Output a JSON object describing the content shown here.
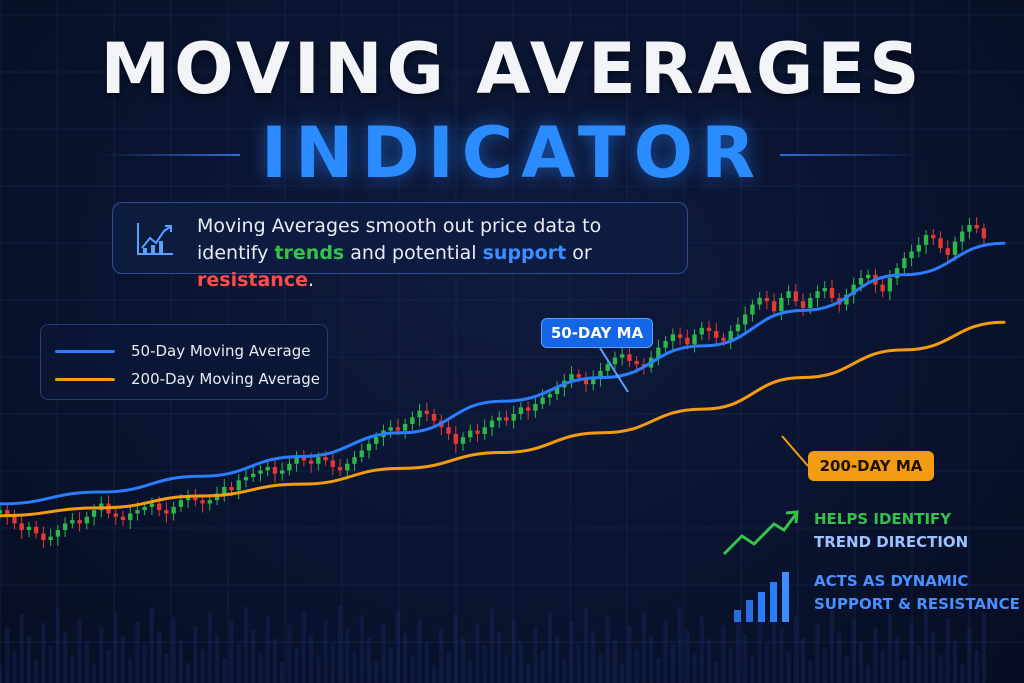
{
  "title": {
    "line1": "MOVING AVERAGES",
    "line2": "INDICATOR"
  },
  "description": {
    "part1": "Moving Averages smooth out price data to",
    "part2": "identify ",
    "trends": "trends",
    "part3": " and potential ",
    "support": "support",
    "part4": " or ",
    "resistance": "resistance",
    "part5": "."
  },
  "legend": [
    {
      "label": "50-Day Moving Average",
      "color": "#2a7dff"
    },
    {
      "label": "200-Day Moving Average",
      "color": "#f39c12"
    }
  ],
  "callouts": {
    "ma50": "50-DAY MA",
    "ma200": "200-DAY MA"
  },
  "notes": [
    {
      "line1": "HELPS IDENTIFY",
      "line2": "TREND DIRECTION",
      "icon": "trend-arrow-icon",
      "color1": "#35c24a",
      "color2": "#9ec2ff"
    },
    {
      "line1": "ACTS AS DYNAMIC",
      "line2": "SUPPORT & RESISTANCE",
      "icon": "bar-chart-icon",
      "color1": "#4a90ff",
      "color2": "#4a90ff"
    }
  ],
  "colors": {
    "background": "#0a1430",
    "up": "#2fb84a",
    "down": "#e53935",
    "ma50": "#2a7dff",
    "ma200": "#f39c12"
  },
  "chart_data": {
    "type": "line",
    "grid": true,
    "ylim": [
      0,
      100
    ],
    "xlim": [
      0,
      100
    ],
    "series": [
      {
        "name": "50-Day Moving Average",
        "color": "#2a7dff",
        "x": [
          0,
          10,
          20,
          30,
          40,
          50,
          60,
          70,
          80,
          90,
          100
        ],
        "y": [
          18,
          21,
          25,
          30,
          36,
          44,
          50,
          58,
          67,
          76,
          84
        ]
      },
      {
        "name": "200-Day Moving Average",
        "color": "#f39c12",
        "x": [
          0,
          10,
          20,
          30,
          40,
          50,
          60,
          70,
          80,
          90,
          100
        ],
        "y": [
          15,
          17,
          20,
          23,
          27,
          31,
          36,
          42,
          50,
          57,
          64
        ]
      }
    ],
    "candles": {
      "x_start": 0,
      "x_end": 98,
      "close": [
        33,
        31,
        29,
        27,
        28,
        26,
        24,
        25,
        27,
        29,
        30,
        29,
        31,
        33,
        35,
        32,
        31,
        30,
        32,
        33,
        34,
        35,
        33,
        32,
        34,
        36,
        37,
        36,
        35,
        36,
        38,
        40,
        39,
        42,
        43,
        44,
        45,
        46,
        44,
        45,
        47,
        49,
        48,
        47,
        49,
        48,
        46,
        45,
        47,
        49,
        51,
        53,
        55,
        57,
        58,
        57,
        59,
        61,
        63,
        62,
        60,
        58,
        56,
        53,
        55,
        57,
        56,
        58,
        60,
        61,
        60,
        62,
        64,
        63,
        65,
        67,
        68,
        70,
        72,
        74,
        73,
        71,
        73,
        75,
        77,
        79,
        80,
        78,
        77,
        76,
        79,
        82,
        84,
        86,
        85,
        83,
        86,
        88,
        87,
        85,
        84,
        87,
        89,
        92,
        95,
        97,
        96,
        93,
        97,
        99,
        96,
        94,
        97,
        99,
        100,
        97,
        95,
        98,
        101,
        103,
        104,
        101,
        99,
        103,
        106,
        109,
        111,
        113,
        116,
        115,
        112,
        110,
        114,
        117,
        119,
        118,
        115
      ]
    }
  }
}
